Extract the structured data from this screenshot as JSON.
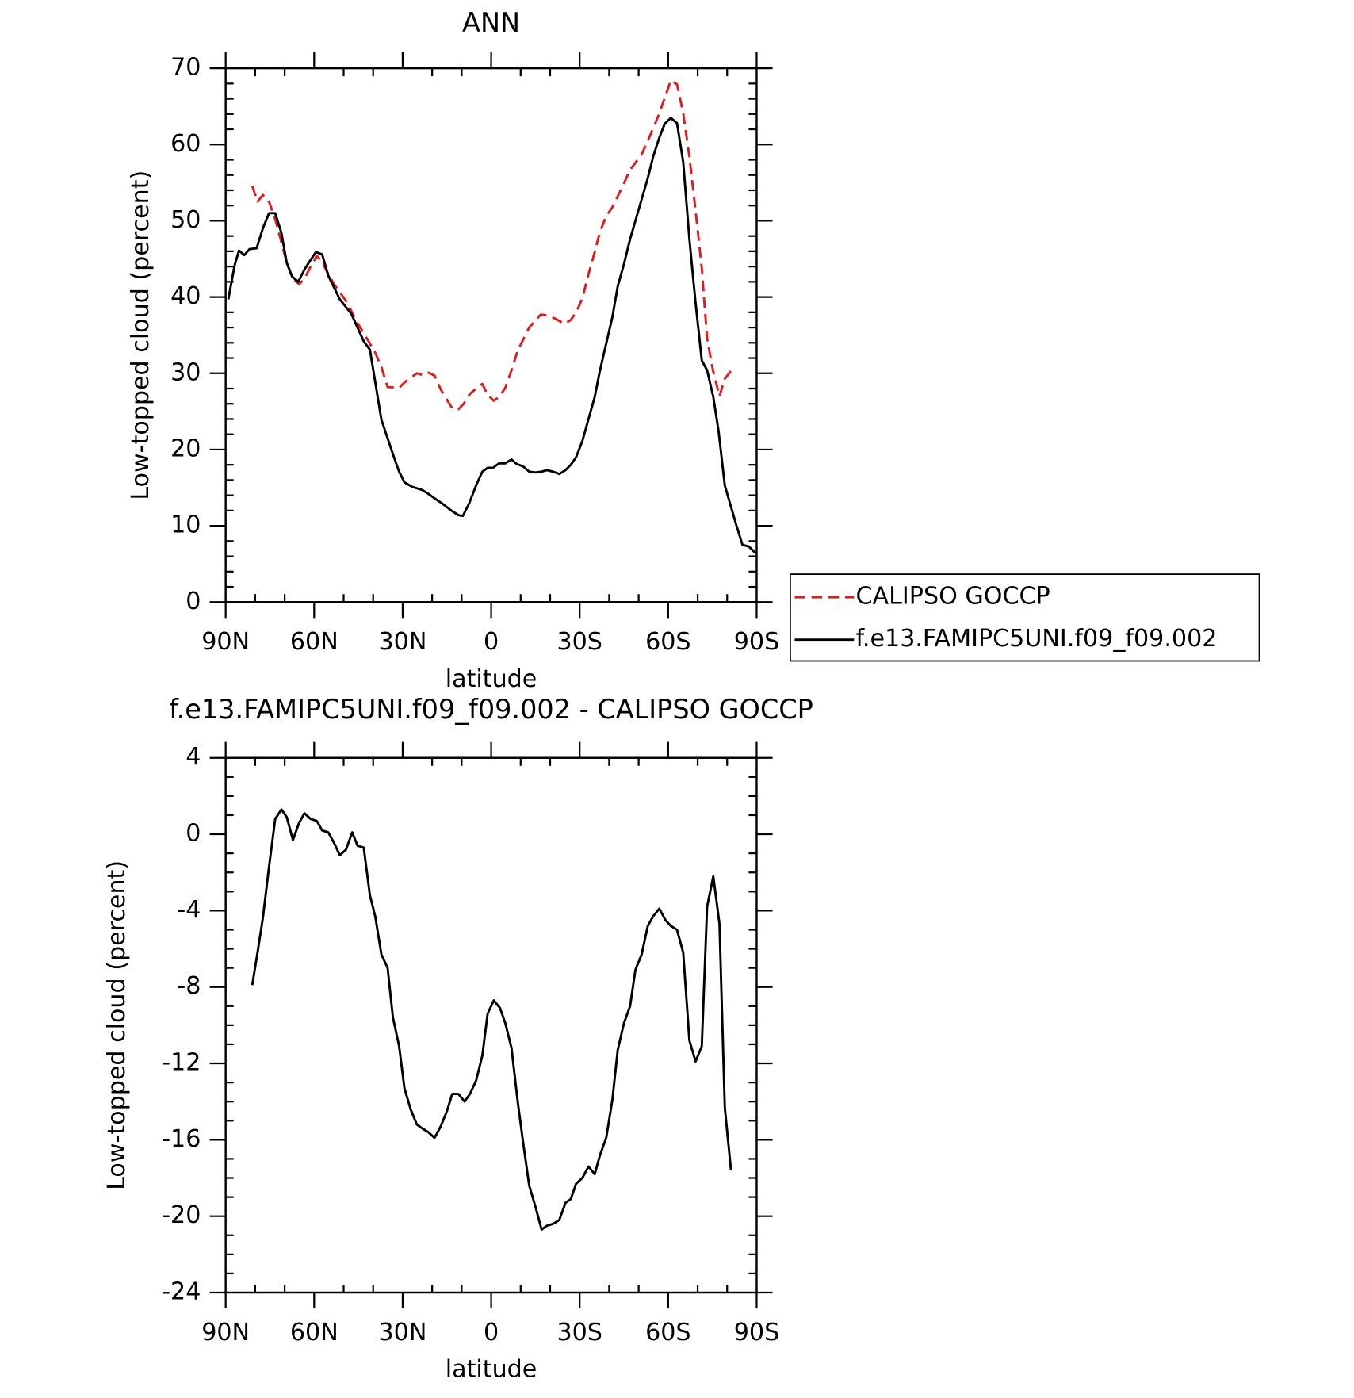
{
  "chart_data": [
    {
      "type": "line",
      "title": "ANN",
      "xlabel": "latitude",
      "ylabel": "Low-topped cloud (percent)",
      "xlim": [
        90,
        -90
      ],
      "ylim": [
        0,
        70
      ],
      "xticks": [
        {
          "value": 90,
          "label": "90N"
        },
        {
          "value": 60,
          "label": "60N"
        },
        {
          "value": 30,
          "label": "30N"
        },
        0,
        {
          "value": -30,
          "label": "30S"
        },
        {
          "value": -60,
          "label": "60S"
        },
        {
          "value": -90,
          "label": "90S"
        }
      ],
      "yticks": [
        0,
        10,
        20,
        30,
        40,
        50,
        60,
        70
      ],
      "xminorticks": [
        80,
        70,
        50,
        40,
        20,
        10,
        -10,
        -20,
        -40,
        -50,
        -70,
        -80
      ],
      "yminorticks": [
        2,
        4,
        6,
        8,
        12,
        14,
        16,
        18,
        22,
        24,
        26,
        28,
        32,
        34,
        36,
        38,
        42,
        44,
        46,
        48,
        52,
        54,
        56,
        58,
        62,
        64,
        66,
        68
      ],
      "legend": "outside right",
      "series": [
        {
          "name": "CALIPSO GOCCP",
          "color": "#e31a1c",
          "line_style": "dashed",
          "x": [
            81,
            79.2,
            77.4,
            75.3,
            73.2,
            71.1,
            69.3,
            67.2,
            65.1,
            63.3,
            61.2,
            59.1,
            57.3,
            55.2,
            53.1,
            49.2,
            45.3,
            41.1,
            39.3,
            37.2,
            35.1,
            31.2,
            29.1,
            25.2,
            23.4,
            21.3,
            19.2,
            17.1,
            13.2,
            11.1,
            9.3,
            7.2,
            5.1,
            3.0,
            1.2,
            -0.9,
            -2.7,
            -4.8,
            -6.9,
            -9.0,
            -12.9,
            -16.8,
            -18.9,
            -21.0,
            -24.9,
            -27.0,
            -28.8,
            -30.9,
            -33.0,
            -35.1,
            -36.9,
            -39.0,
            -41.1,
            -42.9,
            -45.0,
            -47.1,
            -48.9,
            -51.0,
            -53.1,
            -54.9,
            -57.0,
            -59.1,
            -60.9,
            -63.0,
            -65.1,
            -67.2,
            -69.3,
            -71.4,
            -73.2,
            -75.3,
            -77.4,
            -79.2,
            -81.3
          ],
          "values": [
            54.6,
            52.5,
            53.4,
            52.5,
            50.2,
            47.2,
            44.5,
            42.4,
            41.7,
            42.4,
            44.0,
            45.4,
            44.6,
            43.0,
            41.6,
            39.5,
            36.6,
            33.9,
            32.7,
            30.8,
            28.2,
            28.1,
            28.9,
            30.0,
            29.8,
            30.1,
            29.7,
            27.9,
            25.4,
            25.3,
            26.0,
            27.3,
            28.0,
            28.6,
            27.2,
            26.4,
            26.9,
            28.1,
            30.4,
            33.0,
            36.0,
            37.7,
            37.6,
            37.3,
            36.5,
            37.0,
            38.0,
            39.8,
            43.0,
            45.9,
            48.6,
            50.6,
            51.8,
            53.2,
            54.9,
            56.7,
            57.6,
            58.7,
            60.5,
            62.1,
            64.1,
            66.4,
            68.4,
            67.9,
            64.1,
            58.4,
            51.3,
            43.8,
            34.5,
            30.2,
            27.0,
            29.3,
            30.3
          ]
        },
        {
          "name": "f.e13.FAMIPC5UNI.f09_f09.002",
          "color": "#000000",
          "line_style": "solid",
          "x": [
            89.1,
            87,
            85.5,
            83.7,
            81.9,
            79.5,
            77.4,
            75.3,
            73.2,
            71.1,
            69.3,
            67.5,
            65.4,
            63.3,
            61.5,
            59.4,
            57.3,
            55.2,
            51.3,
            47.4,
            43.2,
            41.1,
            37.2,
            33.3,
            31.2,
            29.4,
            26.7,
            23.4,
            21.3,
            19.2,
            16.5,
            13.5,
            11.1,
            9.6,
            7.5,
            5.1,
            3.0,
            1.2,
            -0.6,
            -2.7,
            -4.8,
            -6.9,
            -8.7,
            -10.8,
            -12.9,
            -15.0,
            -17.1,
            -18.9,
            -21.0,
            -23.1,
            -25.2,
            -27.0,
            -28.8,
            -30.9,
            -33.0,
            -35.1,
            -36.9,
            -39.0,
            -41.1,
            -42.9,
            -45.0,
            -47.1,
            -48.9,
            -51.0,
            -53.1,
            -54.9,
            -57.0,
            -58.8,
            -60.9,
            -63.0,
            -65.1,
            -67.2,
            -69.3,
            -71.4,
            -73.2,
            -75.3,
            -77.1,
            -79.2,
            -81.3,
            -83.1,
            -85.2,
            -87.3,
            -89.7
          ],
          "values": [
            39.7,
            44.1,
            46.1,
            45.5,
            46.3,
            46.4,
            49.0,
            51.0,
            51.0,
            48.4,
            44.5,
            42.7,
            42.0,
            43.6,
            44.7,
            45.9,
            45.6,
            42.8,
            39.7,
            37.8,
            34.2,
            33.1,
            23.9,
            19.4,
            17.1,
            15.7,
            15.1,
            14.7,
            14.2,
            13.6,
            12.9,
            12.0,
            11.4,
            11.3,
            12.9,
            15.3,
            17.1,
            17.6,
            17.6,
            18.2,
            18.2,
            18.7,
            18.1,
            17.8,
            17.1,
            17.0,
            17.1,
            17.3,
            17.1,
            16.8,
            17.3,
            18.0,
            19.0,
            21.1,
            24.0,
            26.9,
            30.4,
            33.9,
            37.4,
            41.4,
            44.3,
            47.6,
            50.0,
            52.8,
            55.6,
            58.4,
            60.9,
            62.7,
            63.5,
            62.8,
            57.7,
            47.6,
            39.2,
            31.7,
            30.4,
            26.9,
            22.4,
            15.3,
            12.5,
            10.1,
            7.5,
            7.3,
            6.4
          ]
        }
      ]
    },
    {
      "type": "line",
      "title": "f.e13.FAMIPC5UNI.f09_f09.002 - CALIPSO GOCCP",
      "xlabel": "latitude",
      "ylabel": "Low-topped cloud (percent)",
      "xlim": [
        90,
        -90
      ],
      "ylim": [
        -24,
        4
      ],
      "xticks": [
        {
          "value": 90,
          "label": "90N"
        },
        {
          "value": 60,
          "label": "60N"
        },
        {
          "value": 30,
          "label": "30N"
        },
        0,
        {
          "value": -30,
          "label": "30S"
        },
        {
          "value": -60,
          "label": "60S"
        },
        {
          "value": -90,
          "label": "90S"
        }
      ],
      "yticks": [
        -24,
        -20,
        -16,
        -12,
        -8,
        -4,
        0,
        4
      ],
      "xminorticks": [
        80,
        70,
        50,
        40,
        20,
        10,
        -10,
        -20,
        -40,
        -50,
        -70,
        -80
      ],
      "yminorticks": [
        -23,
        -22,
        -21,
        -19,
        -18,
        -17,
        -15,
        -14,
        -13,
        -11,
        -10,
        -9,
        -7,
        -6,
        -5,
        -3,
        -2,
        -1,
        1,
        2,
        3
      ],
      "series": [
        {
          "color": "#000000",
          "line_style": "solid",
          "x": [
            81,
            79.2,
            77.4,
            75.3,
            73.2,
            71.1,
            69.3,
            67.2,
            65.1,
            63.3,
            61.2,
            59.1,
            57.3,
            55.2,
            53.1,
            51.3,
            49.2,
            47.1,
            45.3,
            43.2,
            41.1,
            39.3,
            37.2,
            35.1,
            33.3,
            31.2,
            29.4,
            27.3,
            25.2,
            23.4,
            21.3,
            19.2,
            17.1,
            15.0,
            13.2,
            11.1,
            9.0,
            7.2,
            5.1,
            3.0,
            1.2,
            -0.9,
            -3.0,
            -4.8,
            -6.9,
            -9.0,
            -10.8,
            -12.9,
            -15.0,
            -17.1,
            -18.9,
            -21.0,
            -23.1,
            -25.2,
            -27.0,
            -28.8,
            -30.9,
            -33.0,
            -35.1,
            -36.9,
            -39.0,
            -41.1,
            -42.9,
            -45.0,
            -47.1,
            -48.9,
            -51.0,
            -53.1,
            -54.9,
            -57.0,
            -59.1,
            -60.9,
            -63.0,
            -65.1,
            -67.2,
            -69.3,
            -71.4,
            -73.2,
            -75.3,
            -77.4,
            -79.2,
            -81.3
          ],
          "values": [
            -7.9,
            -6.2,
            -4.4,
            -1.7,
            0.8,
            1.3,
            0.9,
            -0.3,
            0.6,
            1.1,
            0.8,
            0.7,
            0.2,
            0.1,
            -0.5,
            -1.1,
            -0.8,
            0.1,
            -0.6,
            -0.7,
            -3.2,
            -4.3,
            -6.3,
            -7.0,
            -9.6,
            -11.1,
            -13.3,
            -14.4,
            -15.2,
            -15.4,
            -15.6,
            -15.9,
            -15.3,
            -14.5,
            -13.6,
            -13.6,
            -14.0,
            -13.6,
            -12.9,
            -11.6,
            -9.4,
            -8.7,
            -9.1,
            -9.9,
            -11.2,
            -14.0,
            -16.1,
            -18.4,
            -19.5,
            -20.7,
            -20.5,
            -20.4,
            -20.2,
            -19.3,
            -19.1,
            -18.3,
            -18.0,
            -17.4,
            -17.8,
            -16.8,
            -15.9,
            -13.9,
            -11.3,
            -9.9,
            -9.0,
            -7.1,
            -6.3,
            -4.8,
            -4.3,
            -3.9,
            -4.5,
            -4.8,
            -5.0,
            -6.2,
            -10.8,
            -11.9,
            -11.1,
            -3.8,
            -2.2,
            -4.7,
            -14.3,
            -17.6
          ]
        }
      ]
    }
  ]
}
